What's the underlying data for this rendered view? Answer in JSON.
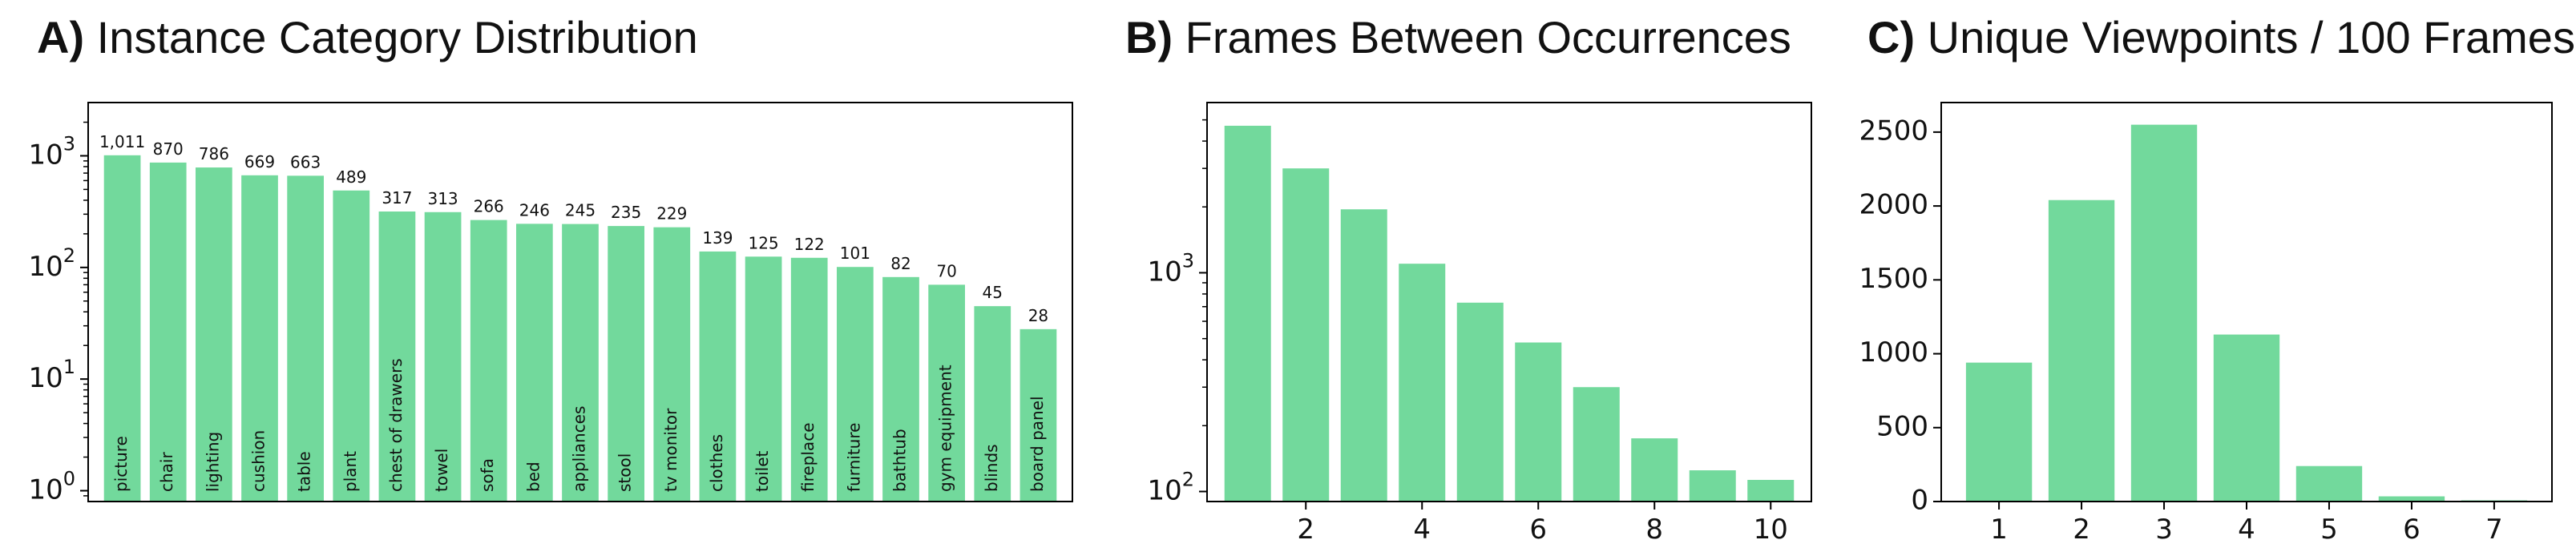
{
  "chart_data": [
    {
      "panel_letter": "A)",
      "title": "Instance Category Distribution",
      "type": "bar",
      "yscale": "log",
      "ylim": [
        0.8,
        3000
      ],
      "ytick_labels": [
        {
          "value": 1,
          "base": "10",
          "exp": "0"
        },
        {
          "value": 10,
          "base": "10",
          "exp": "1"
        },
        {
          "value": 100,
          "base": "10",
          "exp": "2"
        },
        {
          "value": 1000,
          "base": "10",
          "exp": "3"
        }
      ],
      "categories": [
        "picture",
        "chair",
        "lighting",
        "cushion",
        "table",
        "plant",
        "chest of drawers",
        "towel",
        "sofa",
        "bed",
        "appliances",
        "stool",
        "tv monitor",
        "clothes",
        "toilet",
        "fireplace",
        "furniture",
        "bathtub",
        "gym equipment",
        "blinds",
        "board panel"
      ],
      "values": [
        1011,
        870,
        786,
        669,
        663,
        489,
        317,
        313,
        266,
        246,
        245,
        235,
        229,
        139,
        125,
        122,
        101,
        82,
        70,
        45,
        28
      ],
      "value_labels": [
        "1,011",
        "870",
        "786",
        "669",
        "663",
        "489",
        "317",
        "313",
        "266",
        "246",
        "245",
        "235",
        "229",
        "139",
        "125",
        "122",
        "101",
        "82",
        "70",
        "45",
        "28"
      ],
      "color": "#72d99c"
    },
    {
      "panel_letter": "B)",
      "title": "Frames Between Occurrences",
      "type": "bar",
      "yscale": "log",
      "ylim": [
        90,
        6000
      ],
      "xlim": [
        0.3,
        10.7
      ],
      "ytick_labels": [
        {
          "value": 100,
          "base": "10",
          "exp": "2"
        },
        {
          "value": 1000,
          "base": "10",
          "exp": "3"
        }
      ],
      "xticks": [
        2,
        4,
        6,
        8,
        10
      ],
      "x": [
        1,
        2,
        3,
        4,
        5,
        6,
        7,
        8,
        9,
        10
      ],
      "values": [
        4700,
        3000,
        1950,
        1100,
        730,
        480,
        300,
        175,
        125,
        113
      ],
      "color": "#72d99c"
    },
    {
      "panel_letter": "C)",
      "title": "Unique Viewpoints / 100 Frames",
      "type": "bar",
      "yscale": "linear",
      "ylim": [
        0,
        2700
      ],
      "xlim": [
        0.3,
        7.7
      ],
      "yticks": [
        0,
        500,
        1000,
        1500,
        2000,
        2500
      ],
      "xticks": [
        1,
        2,
        3,
        4,
        5,
        6,
        7
      ],
      "x": [
        1,
        2,
        3,
        4,
        5,
        6,
        7
      ],
      "values": [
        940,
        2040,
        2550,
        1130,
        240,
        35,
        8
      ],
      "color": "#72d99c"
    }
  ]
}
